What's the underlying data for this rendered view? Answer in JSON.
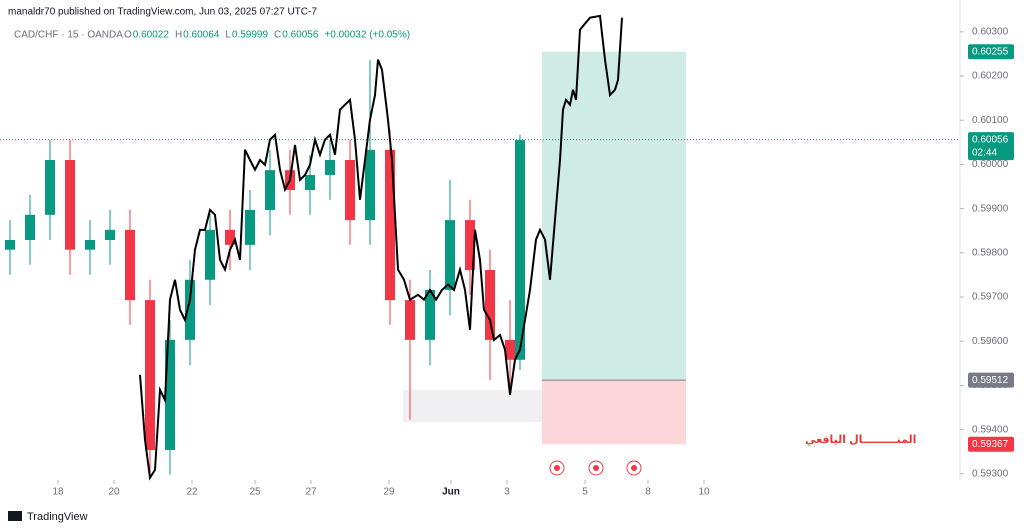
{
  "chart_data": {
    "type": "candlestick",
    "title": "manaldr70 published on TradingView.com, Jun 03, 2025 07:27 UTC-7",
    "subtitle": "CAD/CHF · 15 · OANDA",
    "quote": [
      {
        "label": "O",
        "value": 0.60022
      },
      {
        "label": "H",
        "value": 0.60064
      },
      {
        "label": "L",
        "value": 0.59999
      },
      {
        "label": "C",
        "value": 0.60056
      }
    ],
    "change": "+0.00032 (+0.05%)",
    "footer": "TradingView",
    "annotation": "المنـــــــــال اليافعي",
    "annotation_color": "#e53935",
    "up_color": "#089981",
    "down_color": "#f23645",
    "xlim": [
      0,
      96
    ],
    "ylim": [
      0.59286,
      0.60372
    ],
    "xticks": [
      {
        "value": 5.8,
        "label": "18"
      },
      {
        "value": 11.4,
        "label": "20"
      },
      {
        "value": 19.2,
        "label": "22"
      },
      {
        "value": 25.5,
        "label": "25"
      },
      {
        "value": 31.1,
        "label": "27"
      },
      {
        "value": 38.9,
        "label": "29"
      },
      {
        "value": 45.1,
        "label": "Jun"
      },
      {
        "value": 50.7,
        "label": "3"
      },
      {
        "value": 58.5,
        "label": "5"
      },
      {
        "value": 64.8,
        "label": "8"
      },
      {
        "value": 70.4,
        "label": "10"
      }
    ],
    "yticks": [
      {
        "value": 0.593,
        "label": "0.59300"
      },
      {
        "value": 0.594,
        "label": "0.59400"
      },
      {
        "value": 0.595,
        "label": "0.59500"
      },
      {
        "value": 0.596,
        "label": "0.59600"
      },
      {
        "value": 0.597,
        "label": "0.59700"
      },
      {
        "value": 0.598,
        "label": "0.59800"
      },
      {
        "value": 0.599,
        "label": "0.59900"
      },
      {
        "value": 0.6,
        "label": "0.60000"
      },
      {
        "value": 0.601,
        "label": "0.60100"
      },
      {
        "value": 0.602,
        "label": "0.60200"
      },
      {
        "value": 0.603,
        "label": "0.60300"
      }
    ],
    "candles": {
      "x": [
        1,
        3,
        5,
        7,
        9,
        11,
        13,
        15,
        17,
        19,
        21,
        23,
        25,
        27,
        29,
        31,
        33,
        35,
        37,
        39,
        41,
        43,
        45,
        47,
        49,
        51,
        52
      ],
      "open": [
        0.59807,
        0.59829,
        0.59886,
        0.6001,
        0.59807,
        0.59829,
        0.59852,
        0.59693,
        0.59354,
        0.59603,
        0.59739,
        0.59852,
        0.59818,
        0.59897,
        0.59987,
        0.59942,
        0.59976,
        0.6001,
        0.59874,
        0.60033,
        0.59693,
        0.59603,
        0.59716,
        0.59874,
        0.59761,
        0.59603,
        0.59558
      ],
      "high": [
        0.59874,
        0.59931,
        0.60055,
        0.60055,
        0.59874,
        0.59897,
        0.59897,
        0.59739,
        0.59648,
        0.59784,
        0.59897,
        0.59897,
        0.59942,
        0.60033,
        0.60033,
        0.60021,
        0.60055,
        0.60055,
        0.60236,
        0.60078,
        0.59739,
        0.59761,
        0.59965,
        0.5992,
        0.59807,
        0.59693,
        0.60067
      ],
      "low": [
        0.5975,
        0.59773,
        0.59829,
        0.5975,
        0.5975,
        0.59773,
        0.59637,
        0.59298,
        0.59298,
        0.59546,
        0.59682,
        0.59761,
        0.59761,
        0.5984,
        0.59886,
        0.59886,
        0.5992,
        0.59818,
        0.59818,
        0.59637,
        0.59422,
        0.59546,
        0.59659,
        0.59705,
        0.59512,
        0.59501,
        0.59535
      ],
      "close": [
        0.59829,
        0.59886,
        0.6001,
        0.59807,
        0.59829,
        0.59852,
        0.59693,
        0.59354,
        0.59603,
        0.59739,
        0.59852,
        0.59818,
        0.59897,
        0.59987,
        0.59942,
        0.59976,
        0.6001,
        0.59874,
        0.60033,
        0.59693,
        0.59603,
        0.59716,
        0.59874,
        0.59761,
        0.59603,
        0.59558,
        0.60055
      ]
    },
    "line": {
      "color": "#000000",
      "x": [
        14.0,
        14.5,
        15.0,
        15.5,
        16.0,
        16.5,
        17.0,
        17.5,
        18.0,
        18.5,
        19.0,
        19.5,
        20.0,
        20.5,
        21.0,
        21.5,
        22.0,
        22.5,
        23.0,
        23.5,
        24.0,
        24.5,
        25.0,
        25.5,
        26.0,
        26.5,
        27.0,
        27.5,
        28.0,
        28.5,
        29.0,
        29.5,
        30.0,
        30.5,
        31.0,
        31.5,
        32.0,
        32.5,
        33.0,
        33.5,
        34.0,
        34.5,
        35.0,
        35.5,
        36.0,
        36.5,
        37.0,
        37.5,
        37.8,
        38.2,
        38.8,
        39.2,
        39.8,
        40.4,
        41.0,
        41.8,
        42.4,
        43.0,
        43.6,
        44.2,
        44.8,
        45.4,
        46.0,
        46.5,
        47.0,
        47.5,
        48.0,
        48.4,
        49.0,
        49.4,
        50.0,
        50.5,
        51.0,
        51.5,
        52.0,
        52.5,
        53.0,
        53.6,
        54.0,
        54.5,
        55.0,
        55.5,
        56.0,
        56.3,
        56.6,
        57.0,
        57.3,
        57.6,
        58.0,
        59.0,
        60.0,
        60.5,
        61.0,
        61.5,
        61.8,
        62.2
      ],
      "values": [
        0.59524,
        0.59377,
        0.59291,
        0.59309,
        0.5949,
        0.59467,
        0.59694,
        0.59739,
        0.59671,
        0.59648,
        0.59694,
        0.59807,
        0.59852,
        0.59852,
        0.59897,
        0.59886,
        0.59784,
        0.59762,
        0.59807,
        0.5983,
        0.59784,
        0.60033,
        0.6001,
        0.59988,
        0.6001,
        0.59999,
        0.60056,
        0.60067,
        0.59988,
        0.59943,
        0.59965,
        0.60044,
        0.59965,
        0.59976,
        0.59999,
        0.60056,
        0.60022,
        0.60056,
        0.60067,
        0.60022,
        0.60124,
        0.60135,
        0.60146,
        0.60056,
        0.5992,
        0.6001,
        0.60101,
        0.60157,
        0.60237,
        0.60214,
        0.60101,
        0.6001,
        0.59762,
        0.59739,
        0.59694,
        0.59705,
        0.59694,
        0.59716,
        0.59694,
        0.59716,
        0.59728,
        0.59716,
        0.59762,
        0.59716,
        0.59626,
        0.59852,
        0.59784,
        0.59671,
        0.59648,
        0.59603,
        0.59614,
        0.59581,
        0.59479,
        0.59558,
        0.59581,
        0.59648,
        0.59716,
        0.5983,
        0.59852,
        0.5983,
        0.59739,
        0.59875,
        0.6001,
        0.60124,
        0.60146,
        0.60135,
        0.60169,
        0.60146,
        0.60305,
        0.60332,
        0.60336,
        0.60237,
        0.60157,
        0.60169,
        0.60191,
        0.60332
      ]
    },
    "position": {
      "x": [
        54.2,
        68.6
      ],
      "target": 0.60255,
      "entry": 0.59512,
      "stop": 0.59367,
      "target_color": "#089981",
      "entry_color": "#787b86",
      "stop_color": "#f23645"
    },
    "zone": {
      "x": [
        40.3,
        54.2
      ],
      "low": 0.59417,
      "high": 0.5949
    },
    "last_price": {
      "value": 0.60056,
      "countdown": "02:44",
      "color": "#089981"
    }
  }
}
